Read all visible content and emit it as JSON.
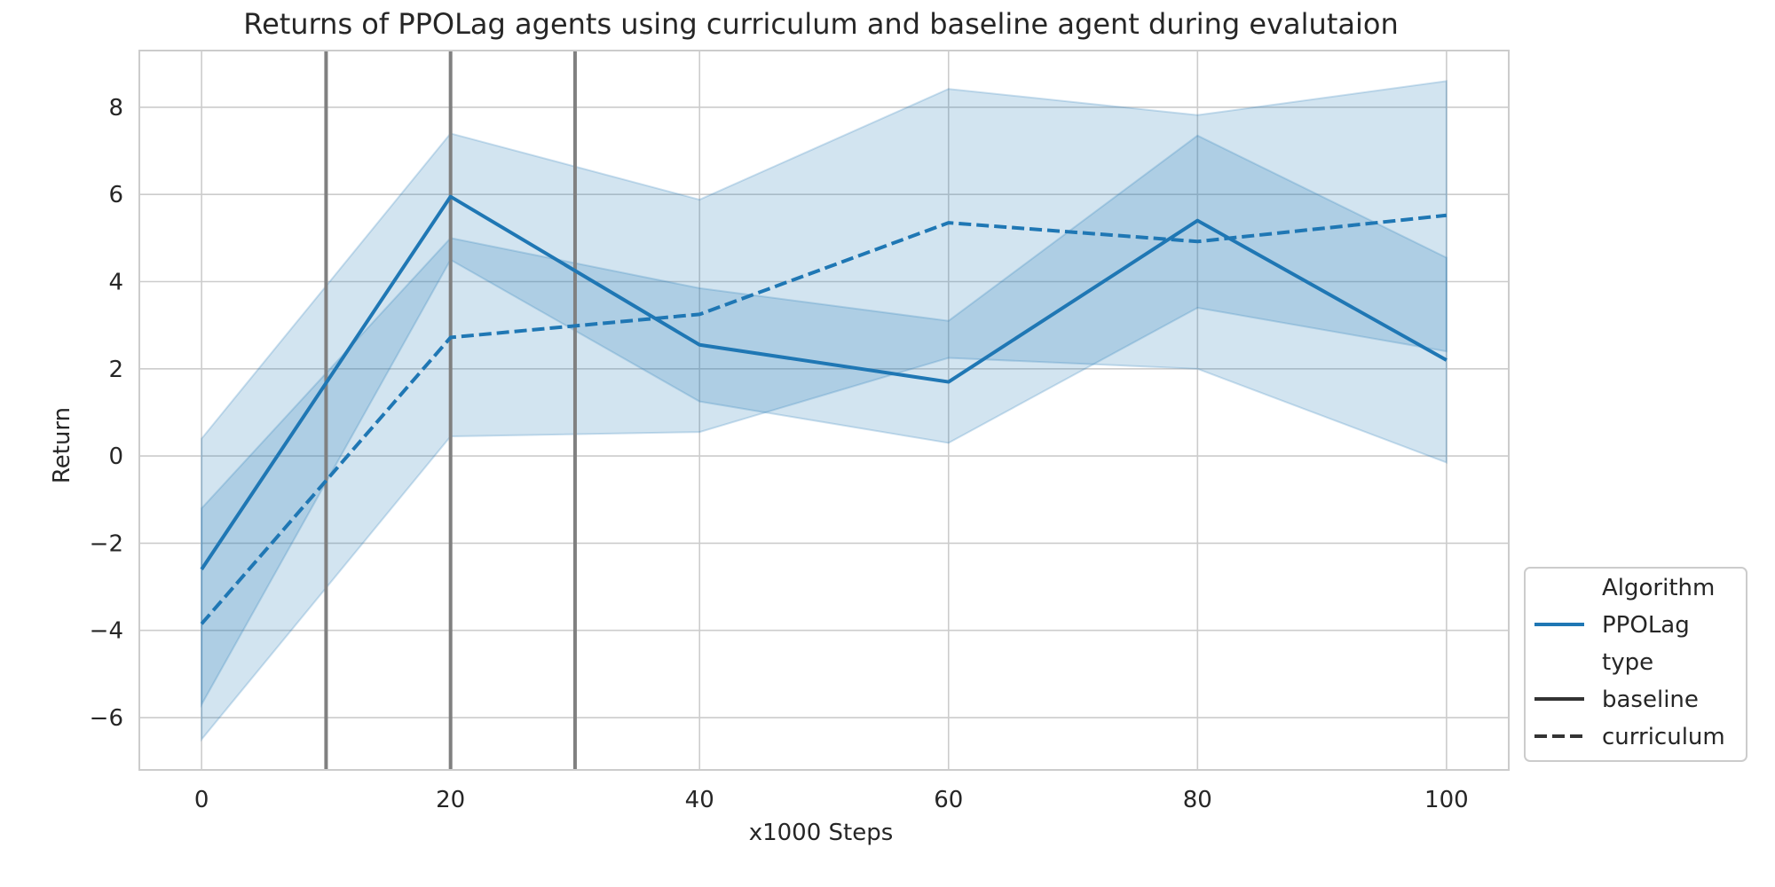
{
  "chart_data": {
    "type": "line",
    "title": "Returns of PPOLag agents using curriculum and baseline agent during evalutaion",
    "xlabel": "x1000 Steps",
    "ylabel": "Return",
    "xlim": [
      -5,
      105
    ],
    "ylim": [
      -7.2,
      9.3
    ],
    "x_ticks": [
      0,
      20,
      40,
      60,
      80,
      100
    ],
    "y_ticks": [
      -6,
      -4,
      -2,
      0,
      2,
      4,
      6,
      8
    ],
    "y_tick_labels": [
      "−6",
      "−4",
      "−2",
      "0",
      "2",
      "4",
      "6",
      "8"
    ],
    "grid": true,
    "vertical_lines": [
      10,
      20,
      30
    ],
    "x": [
      0,
      20,
      40,
      60,
      80,
      100
    ],
    "series": [
      {
        "name": "baseline",
        "line_style": "solid",
        "values": [
          -2.6,
          5.95,
          2.55,
          1.7,
          5.4,
          2.2
        ],
        "ci_lower": [
          -5.7,
          4.5,
          1.25,
          0.3,
          3.4,
          2.4
        ],
        "ci_upper": [
          -1.2,
          5.0,
          3.85,
          3.1,
          7.35,
          4.55
        ]
      },
      {
        "name": "curriculum",
        "line_style": "dashed",
        "values": [
          -3.85,
          2.72,
          3.25,
          5.35,
          4.92,
          5.52
        ],
        "ci_lower": [
          -6.5,
          0.45,
          0.55,
          2.25,
          2.0,
          -0.15
        ],
        "ci_upper": [
          0.4,
          7.4,
          5.88,
          8.42,
          7.82,
          8.6
        ]
      }
    ],
    "legend": {
      "placement": "lower-right",
      "entries": [
        {
          "label": "Algorithm",
          "kind": "header"
        },
        {
          "label": "PPOLag",
          "kind": "hue",
          "color": "#1f77b4"
        },
        {
          "label": "type",
          "kind": "header"
        },
        {
          "label": "baseline",
          "kind": "style",
          "dash": "solid"
        },
        {
          "label": "curriculum",
          "kind": "style",
          "dash": "dashed"
        }
      ]
    },
    "colors": {
      "line": "#1f77b4",
      "band": "#1f77b4",
      "vline": "#808080",
      "grid": "#cccccc",
      "legend_line": "#333333"
    }
  }
}
